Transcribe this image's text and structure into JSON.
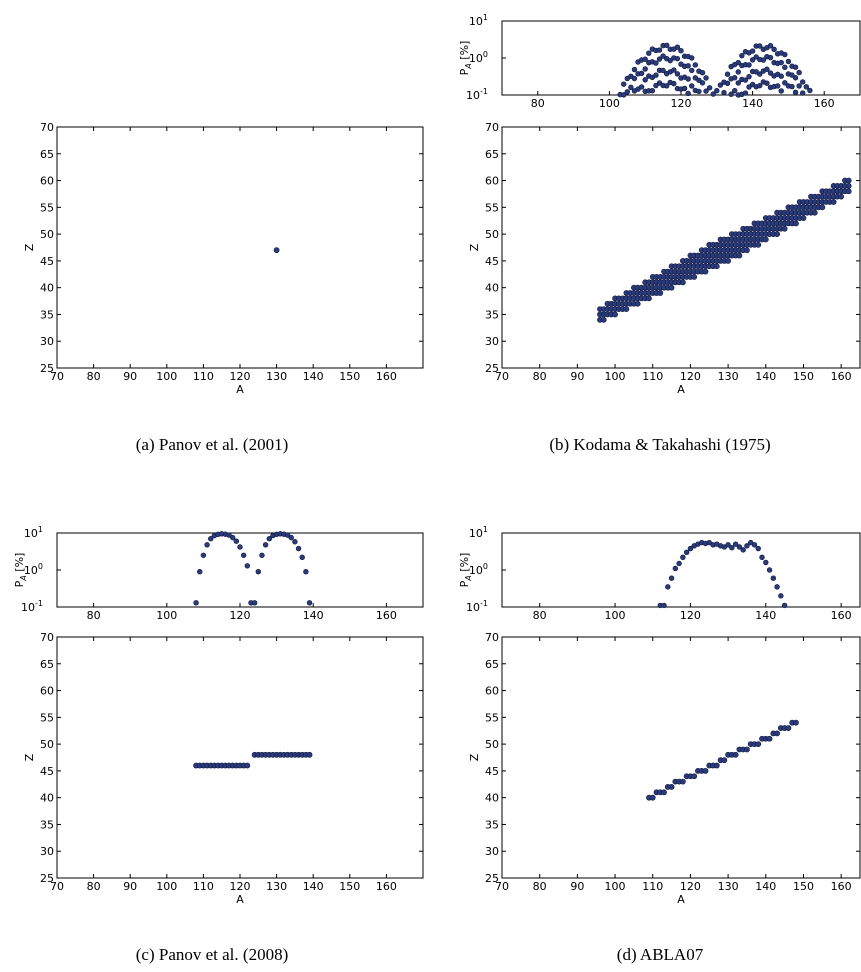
{
  "colors": {
    "marker": "#2b3a78",
    "marker_edge": "#101a44"
  },
  "chart_data": [
    {
      "id": "a",
      "caption": "(a) Panov et al. (2001)",
      "type": "scatter",
      "main": {
        "xlabel": "A",
        "ylabel": "Z",
        "xlim": [
          70,
          170
        ],
        "ylim": [
          25,
          70
        ],
        "xticks": [
          "70",
          "80",
          "90",
          "100",
          "110",
          "120",
          "130",
          "140",
          "150",
          "160"
        ],
        "yticks": [
          "25",
          "30",
          "35",
          "40",
          "45",
          "50",
          "55",
          "60",
          "65",
          "70"
        ],
        "points": [
          [
            130,
            47
          ]
        ]
      }
    },
    {
      "id": "b",
      "caption": "(b) Kodama & Takahashi (1975)",
      "type": "scatter",
      "top": {
        "ylabel": "P_A [%]",
        "yscale": "log",
        "xlim": [
          70,
          170
        ],
        "ylim": [
          0.1,
          10
        ],
        "xticks": [
          "80",
          "100",
          "120",
          "140",
          "160"
        ],
        "yticks": [
          "10^-1",
          "10^0",
          "10^1"
        ],
        "curves": [
          {
            "A0": 116,
            "width": 14,
            "peak": 2.0,
            "range": [
              100,
              133
            ]
          },
          {
            "A0": 143,
            "width": 14,
            "peak": 2.0,
            "range": [
              125,
              157
            ]
          }
        ]
      },
      "main": {
        "xlabel": "A",
        "ylabel": "Z",
        "xlim": [
          70,
          165
        ],
        "ylim": [
          25,
          70
        ],
        "xticks": [
          "70",
          "80",
          "90",
          "100",
          "110",
          "120",
          "130",
          "140",
          "150",
          "160"
        ],
        "yticks": [
          "25",
          "30",
          "35",
          "40",
          "45",
          "50",
          "55",
          "60",
          "65",
          "70"
        ],
        "band": {
          "a_start": 96,
          "a_end": 162,
          "z_start": 35,
          "z_end": 59,
          "halfwidth": 2
        }
      }
    },
    {
      "id": "c",
      "caption": "(c) Panov et al. (2008)",
      "type": "scatter",
      "top": {
        "ylabel": "P_A [%]",
        "yscale": "log",
        "xlim": [
          70,
          170
        ],
        "ylim": [
          0.1,
          10
        ],
        "xticks": [
          "80",
          "100",
          "120",
          "140",
          "160"
        ],
        "yticks": [
          "10^-1",
          "10^0",
          "10^1"
        ],
        "points": [
          [
            108,
            0.13
          ],
          [
            109,
            0.9
          ],
          [
            110,
            2.5
          ],
          [
            111,
            4.8
          ],
          [
            112,
            7
          ],
          [
            113,
            8.5
          ],
          [
            114,
            9.2
          ],
          [
            115,
            9.5
          ],
          [
            116,
            9.3
          ],
          [
            117,
            8.8
          ],
          [
            118,
            7.5
          ],
          [
            119,
            6
          ],
          [
            120,
            4.2
          ],
          [
            121,
            2.5
          ],
          [
            122,
            1.3
          ],
          [
            123,
            0.13
          ],
          [
            124,
            0.13
          ],
          [
            125,
            0.9
          ],
          [
            126,
            2.5
          ],
          [
            127,
            4.8
          ],
          [
            128,
            7
          ],
          [
            129,
            8.5
          ],
          [
            130,
            9.2
          ],
          [
            131,
            9.5
          ],
          [
            132,
            9.3
          ],
          [
            133,
            8.8
          ],
          [
            134,
            7.5
          ],
          [
            135,
            5.8
          ],
          [
            136,
            3.8
          ],
          [
            137,
            2.2
          ],
          [
            138,
            0.9
          ],
          [
            139,
            0.13
          ]
        ]
      },
      "main": {
        "xlabel": "A",
        "ylabel": "Z",
        "xlim": [
          70,
          170
        ],
        "ylim": [
          25,
          70
        ],
        "xticks": [
          "70",
          "80",
          "90",
          "100",
          "110",
          "120",
          "130",
          "140",
          "150",
          "160"
        ],
        "yticks": [
          "25",
          "30",
          "35",
          "40",
          "45",
          "50",
          "55",
          "60",
          "65",
          "70"
        ],
        "segments": [
          {
            "z": 46,
            "a_from": 108,
            "a_to": 122
          },
          {
            "z": 48,
            "a_from": 124,
            "a_to": 139
          }
        ]
      }
    },
    {
      "id": "d",
      "caption": "(d) ABLA07",
      "type": "scatter",
      "top": {
        "ylabel": "P_A [%]",
        "yscale": "log",
        "xlim": [
          70,
          165
        ],
        "ylim": [
          0.1,
          10
        ],
        "xticks": [
          "80",
          "100",
          "120",
          "140",
          "160"
        ],
        "yticks": [
          "10^-1",
          "10^0",
          "10^1"
        ],
        "points": [
          [
            112,
            0.11
          ],
          [
            113,
            0.11
          ],
          [
            114,
            0.35
          ],
          [
            115,
            0.6
          ],
          [
            116,
            1.1
          ],
          [
            117,
            1.5
          ],
          [
            118,
            2.2
          ],
          [
            119,
            3
          ],
          [
            120,
            3.8
          ],
          [
            121,
            4.5
          ],
          [
            122,
            5
          ],
          [
            123,
            5.5
          ],
          [
            124,
            5.2
          ],
          [
            125,
            5.5
          ],
          [
            126,
            4.8
          ],
          [
            127,
            5
          ],
          [
            128,
            4.5
          ],
          [
            129,
            4.2
          ],
          [
            130,
            4.8
          ],
          [
            131,
            4
          ],
          [
            132,
            5
          ],
          [
            133,
            4.2
          ],
          [
            134,
            3.5
          ],
          [
            135,
            4.5
          ],
          [
            136,
            5.5
          ],
          [
            137,
            4.8
          ],
          [
            138,
            3.8
          ],
          [
            139,
            2.2
          ],
          [
            140,
            1.6
          ],
          [
            141,
            1
          ],
          [
            142,
            0.6
          ],
          [
            143,
            0.35
          ],
          [
            144,
            0.2
          ],
          [
            145,
            0.11
          ]
        ]
      },
      "main": {
        "xlabel": "A",
        "ylabel": "Z",
        "xlim": [
          70,
          165
        ],
        "ylim": [
          25,
          70
        ],
        "xticks": [
          "70",
          "80",
          "90",
          "100",
          "110",
          "120",
          "130",
          "140",
          "150",
          "160"
        ],
        "yticks": [
          "25",
          "30",
          "35",
          "40",
          "45",
          "50",
          "55",
          "60",
          "65",
          "70"
        ],
        "line": {
          "a_start": 109,
          "a_end": 148,
          "z_start": 40,
          "z_end": 54
        }
      }
    }
  ]
}
